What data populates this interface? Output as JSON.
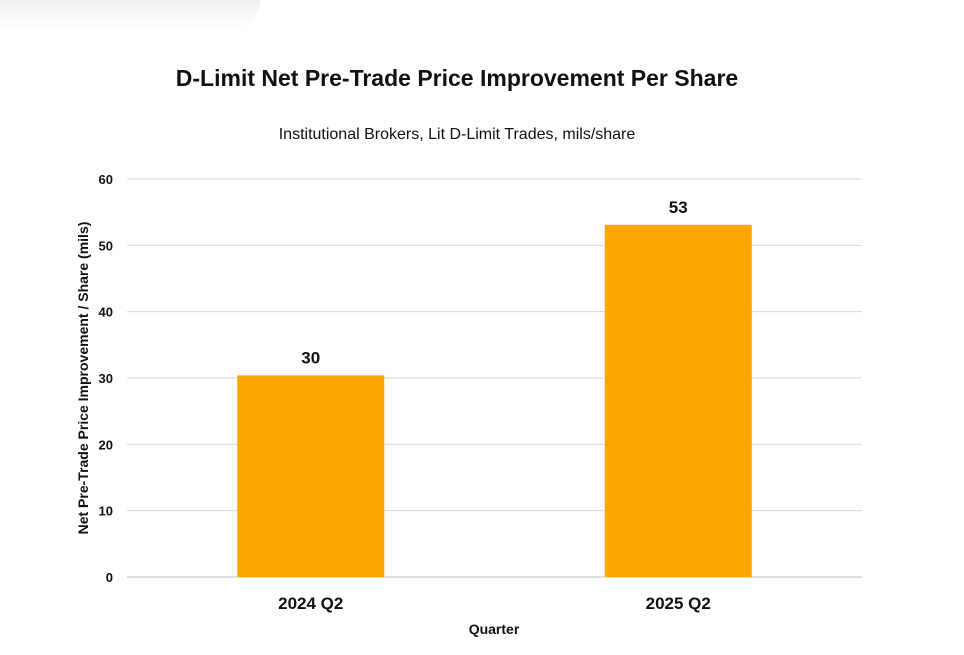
{
  "chart_data": {
    "type": "bar",
    "title": "D-Limit Net Pre-Trade Price Improvement Per Share",
    "subtitle": "Institutional  Brokers, Lit D-Limit Trades, mils/share",
    "xlabel": "Quarter",
    "ylabel": "Net Pre-Trade Price Improvement / Share (mils)",
    "categories": [
      "2024 Q2",
      "2025 Q2"
    ],
    "values": [
      30.4,
      53.1
    ],
    "data_labels": [
      "30",
      "53"
    ],
    "ylim": [
      0,
      60
    ],
    "yticks": [
      0,
      10,
      20,
      30,
      40,
      50,
      60
    ],
    "grid": true,
    "bar_color": "#FFA500",
    "grid_color": "#d9d9d9"
  }
}
